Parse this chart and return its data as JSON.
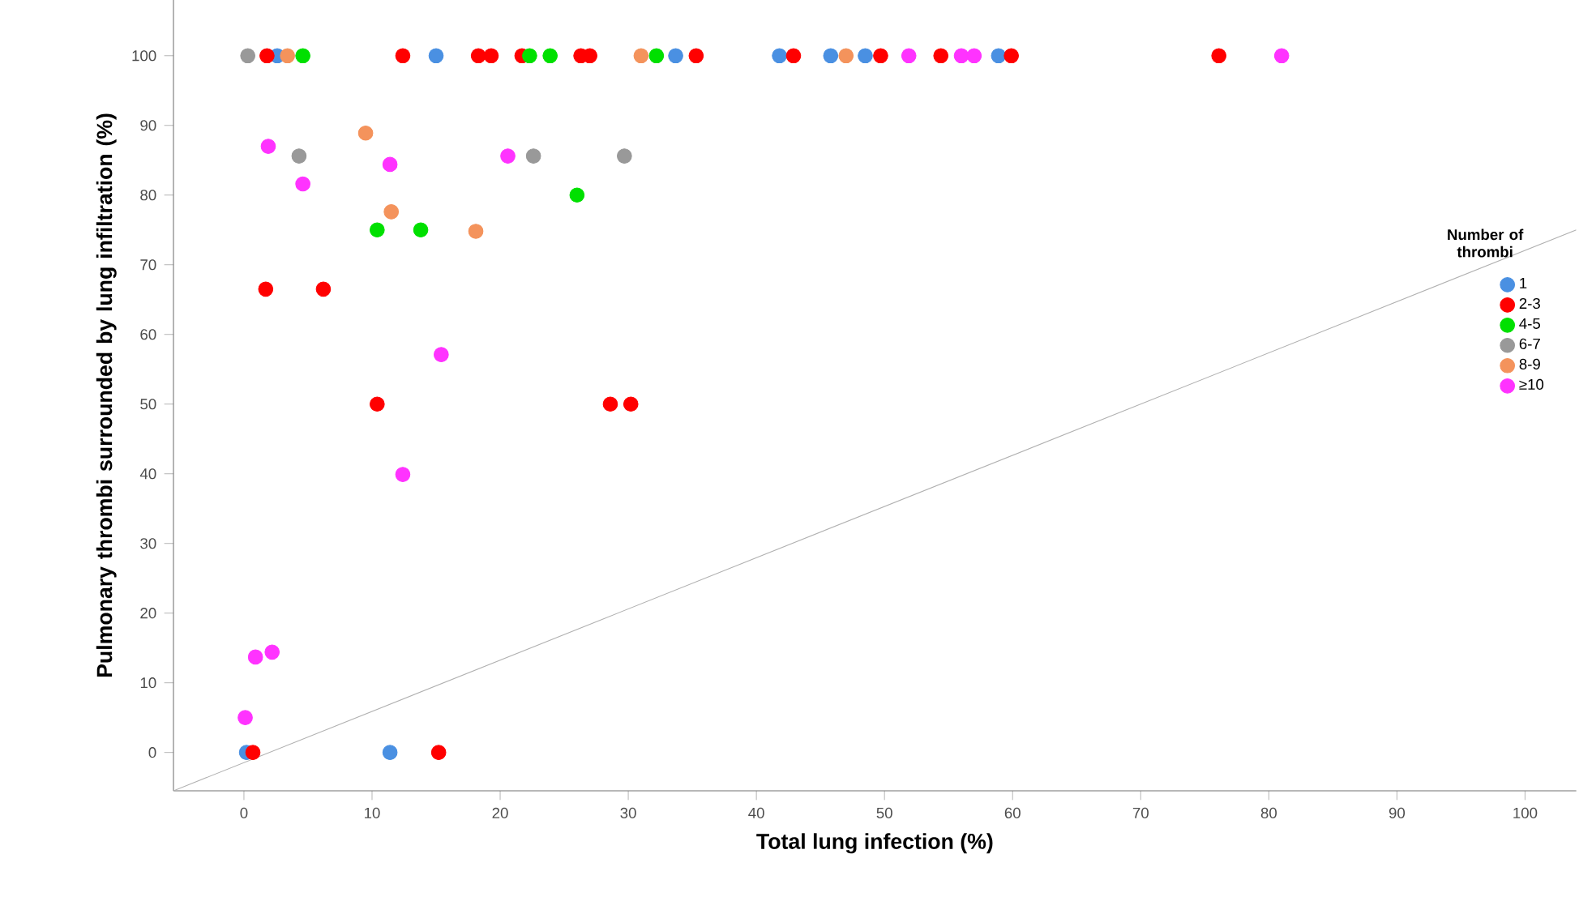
{
  "chart_data": {
    "type": "scatter",
    "xlabel": "Total lung infection (%)",
    "ylabel": "Pulmonary thrombi surrounded by lung infiltration (%)",
    "legend_title": "Number of thrombi",
    "legend": "right",
    "marker": "circle",
    "grid": false,
    "xlim": [
      -5.5,
      104
    ],
    "ylim": [
      -5.5,
      108
    ],
    "xticks": [
      0,
      10,
      20,
      30,
      40,
      50,
      60,
      70,
      80,
      90,
      100
    ],
    "yticks": [
      0,
      10,
      20,
      30,
      40,
      50,
      60,
      70,
      80,
      90,
      100
    ],
    "series": [
      {
        "name": "1",
        "color": "#4a90e2",
        "x": [
          2.6,
          15.0,
          33.7,
          41.8,
          45.8,
          48.5,
          58.9,
          11.4,
          0.2
        ],
        "values": [
          100,
          100,
          100,
          100,
          100,
          100,
          100,
          0,
          0
        ]
      },
      {
        "name": "2-3",
        "color": "#ff0000",
        "x": [
          1.8,
          12.4,
          18.3,
          19.3,
          21.7,
          26.3,
          27.0,
          35.3,
          42.9,
          49.7,
          54.4,
          59.9,
          76.1,
          1.7,
          6.2,
          10.4,
          28.6,
          30.2,
          0.7,
          15.2
        ],
        "values": [
          100,
          100,
          100,
          100,
          100,
          100,
          100,
          100,
          100,
          100,
          100,
          100,
          100,
          66.5,
          66.5,
          50,
          50,
          50,
          0,
          0
        ]
      },
      {
        "name": "4-5",
        "color": "#00e000",
        "x": [
          4.6,
          22.3,
          23.9,
          32.2,
          10.4,
          13.8,
          26.0
        ],
        "values": [
          100,
          100,
          100,
          100,
          75,
          75,
          80
        ]
      },
      {
        "name": "6-7",
        "color": "#999999",
        "x": [
          0.3,
          4.3,
          22.6,
          29.7
        ],
        "values": [
          100,
          85.6,
          85.6,
          85.6
        ]
      },
      {
        "name": "8-9",
        "color": "#f4935c",
        "x": [
          3.4,
          31.0,
          47.0,
          9.5,
          11.5,
          18.1
        ],
        "values": [
          100,
          100,
          100,
          88.9,
          77.6,
          74.8
        ]
      },
      {
        "name": "≥10",
        "color": "#ff33ff",
        "x": [
          51.9,
          56.0,
          57.0,
          81.0,
          1.9,
          4.6,
          11.4,
          20.6,
          15.4,
          12.4,
          0.9,
          2.2,
          0.1
        ],
        "values": [
          100,
          100,
          100,
          100,
          87.0,
          81.6,
          84.4,
          85.6,
          57.1,
          39.9,
          13.7,
          14.4,
          5.0
        ]
      },
      {
        "type": "line",
        "color": "#b0b0b0",
        "marker": "none",
        "x": [
          -5.5,
          104
        ],
        "values": [
          -5.5,
          75
        ]
      }
    ]
  }
}
